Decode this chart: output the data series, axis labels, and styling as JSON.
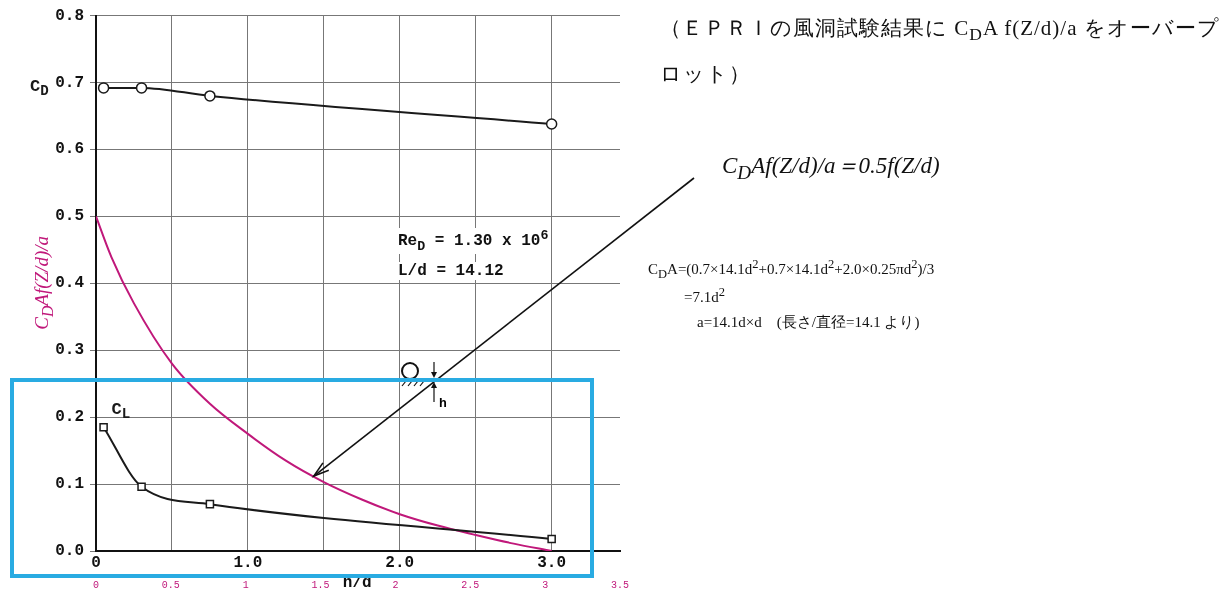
{
  "chart_data": {
    "type": "line",
    "title": "（ＥＰＲＩの風洞試験結果に C$_{D}$A f(Z/d)/a をオーバープロット）",
    "xlabel": "h/d",
    "xlim": [
      0,
      3.45
    ],
    "xticks": [
      {
        "value": 0,
        "label": "0"
      },
      {
        "value": 0.5,
        "label": null
      },
      {
        "value": 1,
        "label": "1.0"
      },
      {
        "value": 1.5,
        "label": null
      },
      {
        "value": 2,
        "label": "2.0"
      },
      {
        "value": 2.5,
        "label": null
      },
      {
        "value": 3,
        "label": "3.0"
      }
    ],
    "x2lim": [
      0,
      3.5
    ],
    "x2ticks": [
      0,
      0.5,
      1,
      1.5,
      2,
      2.5,
      3,
      3.5
    ],
    "ylim": [
      0,
      0.8
    ],
    "yticks": [
      {
        "value": 0,
        "label": "0.0"
      },
      {
        "value": 0.1,
        "label": "0.1"
      },
      {
        "value": 0.2,
        "label": "0.2"
      },
      {
        "value": 0.3,
        "label": "0.3"
      },
      {
        "value": 0.4,
        "label": "0.4"
      },
      {
        "value": 0.5,
        "label": "0.5"
      },
      {
        "value": 0.6,
        "label": "0.6"
      },
      {
        "value": 0.7,
        "label": "0.7"
      },
      {
        "value": 0.8,
        "label": "0.8"
      }
    ],
    "grid": true,
    "legend": false,
    "series": [
      {
        "name": "C$_{D}$",
        "color": "#1a1a1a",
        "marker": "circle",
        "x": [
          0.05,
          0.3,
          0.75,
          3.0
        ],
        "values": [
          0.692,
          0.692,
          0.68,
          0.638
        ]
      },
      {
        "name": "C$_{L}$",
        "color": "#1a1a1a",
        "marker": "square",
        "x": [
          0.05,
          0.3,
          0.75,
          3.0
        ],
        "values": [
          0.185,
          0.096,
          0.07,
          0.018
        ]
      },
      {
        "name": "C$_{D}$Af(Z/d)/a",
        "color": "#c0187a",
        "marker": "none",
        "x": [
          0,
          0.1,
          0.25,
          0.5,
          0.75,
          1.0,
          1.25,
          1.5,
          1.75,
          2.0,
          2.25,
          2.5,
          2.75,
          3.0
        ],
        "values": [
          0.5,
          0.44,
          0.37,
          0.28,
          0.22,
          0.175,
          0.135,
          0.103,
          0.077,
          0.055,
          0.038,
          0.024,
          0.011,
          0.0
        ]
      }
    ],
    "annotations": [
      "C$_{D}$Af(Z/d)/a＝0.5f(Z/d)",
      "Re$_{D}$ = 1.30 x 10$^{6}$",
      "L/d = 14.12",
      "C$_{D}$A=(0.7×14.1d$^{2}$+0.7×14.1d$^{2}$+2.0×0.25πd$^{2}$)/3",
      "=7.1d$^{2}$",
      "a=14.1d×d　(長さ/直径=14.1 より)",
      "h"
    ]
  }
}
